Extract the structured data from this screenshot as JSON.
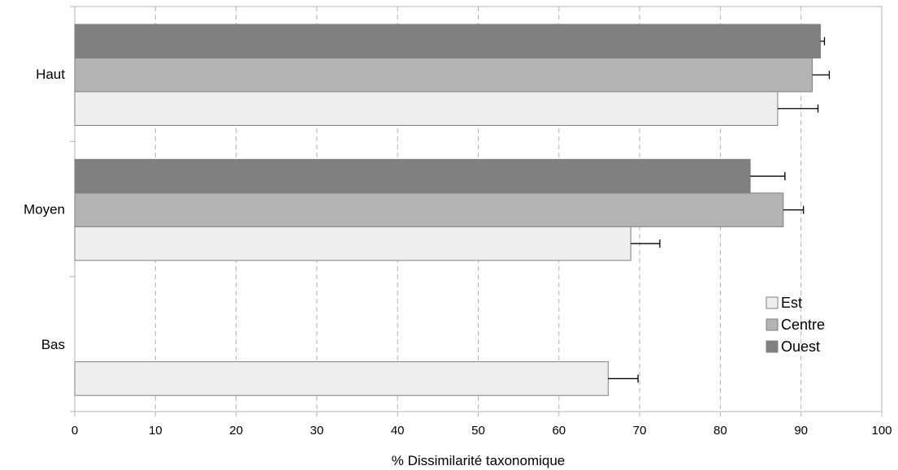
{
  "chart_data": {
    "type": "bar",
    "orientation": "horizontal",
    "categories": [
      "Haut",
      "Moyen",
      "Bas"
    ],
    "series": [
      {
        "name": "Ouest",
        "color": "#808080",
        "values": [
          92.4,
          83.7,
          null
        ],
        "errors": [
          0.5,
          4.3,
          null
        ]
      },
      {
        "name": "Centre",
        "color": "#b3b3b3",
        "values": [
          91.4,
          87.8,
          null
        ],
        "errors": [
          2.1,
          2.5,
          null
        ]
      },
      {
        "name": "Est",
        "color": "#eeeeee",
        "values": [
          87.1,
          68.9,
          66.1
        ],
        "errors": [
          5.0,
          3.6,
          3.7
        ]
      }
    ],
    "xlabel": "% Dissimilarité taxonomique",
    "ylabel": "",
    "xlim": [
      0,
      100
    ],
    "xticks": [
      0,
      10,
      20,
      30,
      40,
      50,
      60,
      70,
      80,
      90,
      100
    ],
    "xtick_labels": [
      "0",
      "10",
      "20",
      "30",
      "40",
      "50",
      "60",
      "70",
      "80",
      "90",
      "100"
    ],
    "grid": "vertical-dashed",
    "legend": {
      "placement": "bottom-right",
      "entries": [
        {
          "name": "Est",
          "color": "#eeeeee"
        },
        {
          "name": "Centre",
          "color": "#b3b3b3"
        },
        {
          "name": "Ouest",
          "color": "#808080"
        }
      ]
    }
  }
}
